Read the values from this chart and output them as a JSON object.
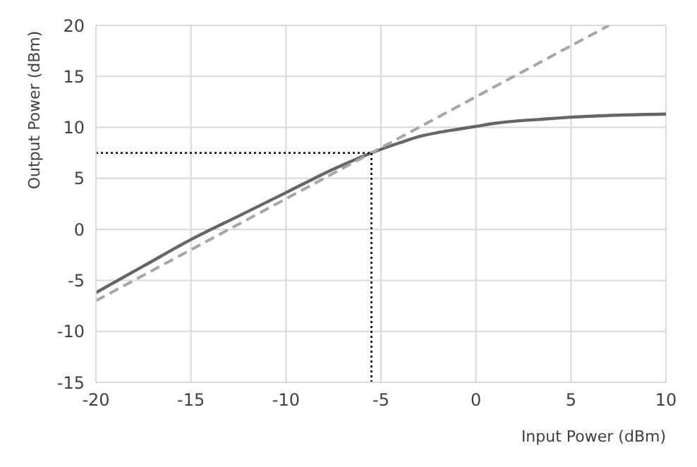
{
  "chart_data": {
    "type": "line",
    "xlabel": "Input Power (dBm)",
    "ylabel": "Output Power (dBm)",
    "xlim": [
      -20,
      10
    ],
    "xticks": [
      -20,
      -15,
      -10,
      -5,
      0,
      5,
      10
    ],
    "ylim": [
      -15,
      20
    ],
    "yticks": [
      -15,
      -10,
      -5,
      0,
      5,
      10,
      15,
      20
    ],
    "grid": true,
    "marker": "none",
    "series": [
      {
        "color": "#666666",
        "line_style": "solid",
        "x": [
          -20,
          -17.5,
          -15,
          -12.5,
          -10,
          -7.5,
          -5.5,
          -4,
          -3,
          -2,
          -1,
          0,
          1,
          2,
          3.5,
          5,
          7.5,
          10
        ],
        "values": [
          -6.2,
          -3.6,
          -1.0,
          1.3,
          3.6,
          5.9,
          7.5,
          8.5,
          9.1,
          9.5,
          9.8,
          10.1,
          10.4,
          10.6,
          10.8,
          11.0,
          11.2,
          11.3
        ]
      },
      {
        "color": "#a6a6a6",
        "line_style": "dashed",
        "x": [
          -20,
          7
        ],
        "values": [
          -7,
          20
        ]
      },
      {
        "color": "#000000",
        "line_style": "dotted",
        "x": [
          -5.5,
          -5.5
        ],
        "values": [
          -15,
          7.5
        ]
      },
      {
        "color": "#000000",
        "line_style": "dotted",
        "x": [
          -20,
          -5.5
        ],
        "values": [
          7.5,
          7.5
        ]
      }
    ]
  }
}
